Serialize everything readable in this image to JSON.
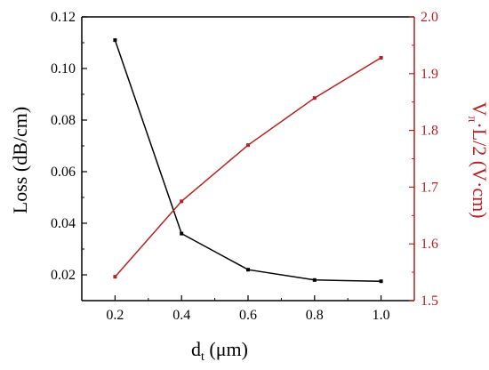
{
  "chart_data": {
    "type": "line",
    "title": "",
    "grid": false,
    "legend": "none",
    "x": [
      0.2,
      0.4,
      0.6,
      0.8,
      1.0
    ],
    "xlim": [
      0.1,
      1.1
    ],
    "xticks": [
      "0.2",
      "0.4",
      "0.6",
      "0.8",
      "1.0"
    ],
    "xlabel": {
      "main": "d",
      "sub": "t",
      "rest": " (μm)"
    },
    "left_axis": {
      "label": "Loss (dB/cm)",
      "ylim": [
        0.01,
        0.12
      ],
      "ticks": [
        "0.02",
        "0.04",
        "0.06",
        "0.08",
        "0.10",
        "0.12"
      ],
      "color": "#000000"
    },
    "right_axis": {
      "label": {
        "main": "V",
        "sub": "π",
        "rest": "·L/2 (V·cm)"
      },
      "ylim": [
        1.5,
        2.0
      ],
      "ticks": [
        "1.5",
        "1.6",
        "1.7",
        "1.8",
        "1.9",
        "2.0"
      ],
      "color": "#b22222"
    },
    "series": [
      {
        "axis": "left",
        "color": "#000000",
        "values": [
          0.111,
          0.036,
          0.022,
          0.018,
          0.0175
        ]
      },
      {
        "axis": "right",
        "color": "#b22222",
        "values": [
          1.542,
          1.675,
          1.774,
          1.857,
          1.928
        ]
      }
    ]
  }
}
